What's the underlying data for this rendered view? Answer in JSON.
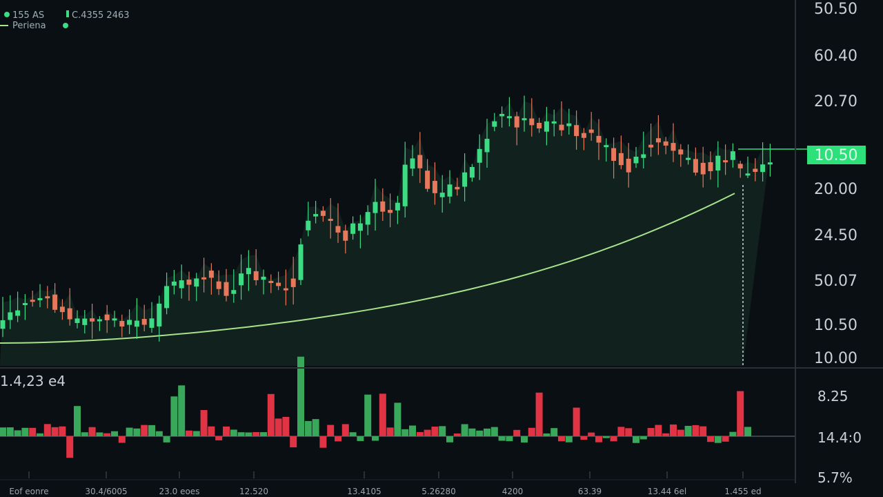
{
  "header": {
    "symbol": "155 AS",
    "quote": "C.4355 2463",
    "legend": "Periena"
  },
  "price_axis": [
    "50.50",
    "60.40",
    "20.70",
    "20.00",
    "24.50",
    "50.07",
    "10.50",
    "10.00"
  ],
  "price_tag": "10.50",
  "volume_pane": {
    "label": "1.4,23 e4",
    "axis": [
      "8.25",
      "14.4:0",
      "5.7%"
    ]
  },
  "time_axis": [
    "Eof eonre",
    "30.4/6005",
    "23.0 eoes",
    "12.520",
    "13.4105",
    "5.26280",
    "4200",
    "63.39",
    "13.44 6el",
    "1.455 ed"
  ]
}
